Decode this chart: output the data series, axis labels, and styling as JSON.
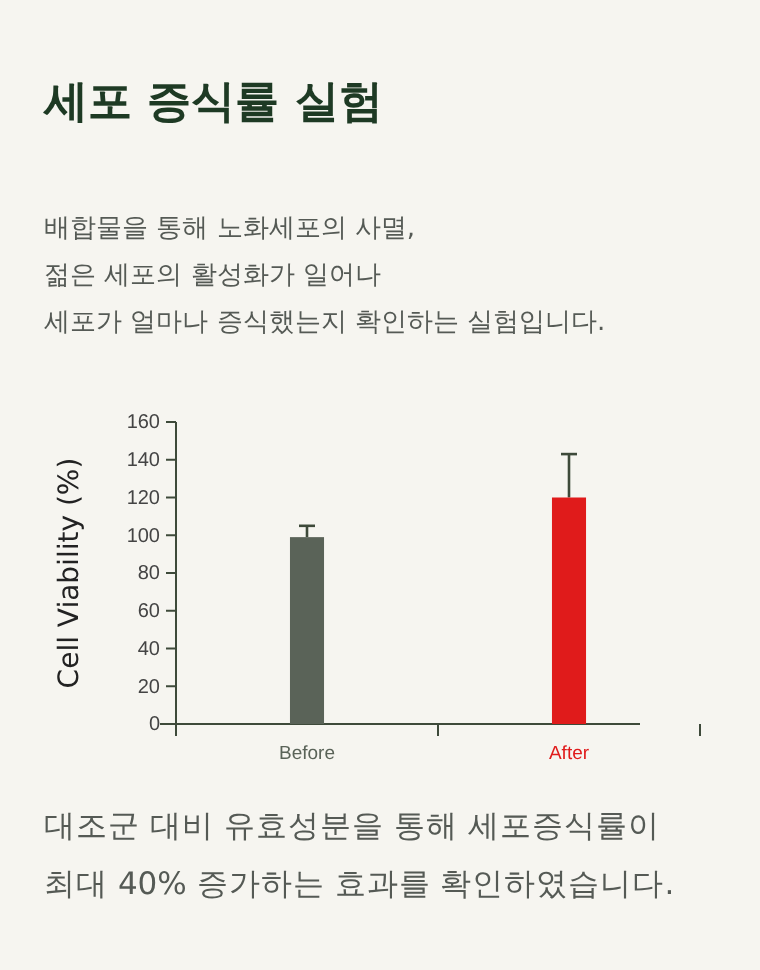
{
  "chart_data": {
    "type": "bar",
    "title": "세포 증식률 실험",
    "subtitle": "배합물을 통해 노화세포의 사멸,\n젊은 세포의 활성화가 일어나\n세포가 얼마나 증식했는지 확인하는 실험입니다.",
    "ylabel": "Cell Viability (%)",
    "categories": [
      "Before",
      "After"
    ],
    "values": [
      99,
      120
    ],
    "colors": [
      "#5a6358",
      "#e01b1b"
    ],
    "errors": [
      [
        99,
        105
      ],
      [
        120,
        143
      ]
    ],
    "ylim": [
      0,
      160
    ],
    "yticks": [
      0,
      20,
      40,
      60,
      80,
      100,
      120,
      140,
      160
    ],
    "grid": false,
    "annotations": [
      "대조군 대비 유효성분을 통해 세포증식률이",
      "최대 40% 증가하는 효과를 확인하였습니다."
    ]
  }
}
